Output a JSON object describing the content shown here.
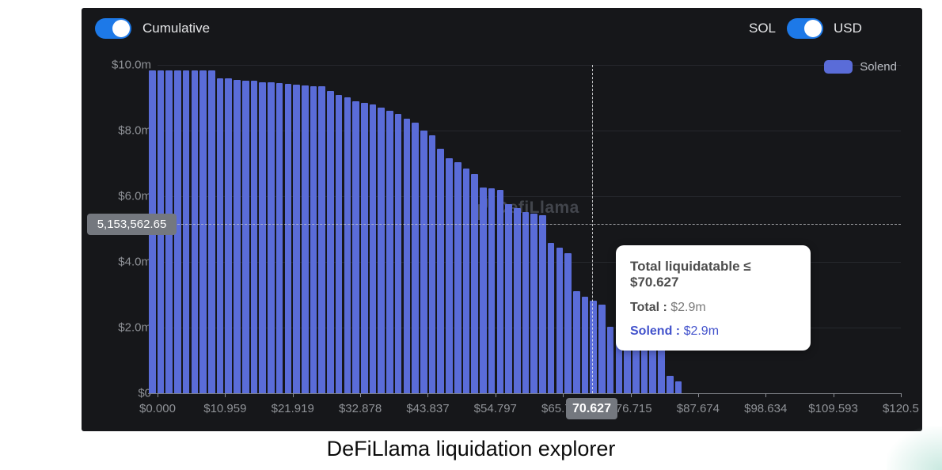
{
  "panel": {
    "cumulative_toggle": {
      "label": "Cumulative",
      "state": "on"
    },
    "currency_toggle": {
      "left_label": "SOL",
      "right_label": "USD",
      "selected": "USD"
    },
    "legend": [
      {
        "label": "Solend",
        "color": "#5a6cd8"
      }
    ],
    "watermark": "DefiLlama"
  },
  "chart_data": {
    "type": "bar",
    "title": "",
    "xlabel": "",
    "ylabel": "",
    "x_tick_labels": [
      "$0.000",
      "$10.959",
      "$21.919",
      "$32.878",
      "$43.837",
      "$54.797",
      "$65.756",
      "$76.715",
      "$87.674",
      "$98.634",
      "$109.593",
      "$120.5"
    ],
    "y_tick_labels": [
      "$10.0m",
      "$8.0m",
      "$6.0m",
      "$4.0m",
      "$2.0m",
      "$0"
    ],
    "ylim_usd_m": [
      0,
      10
    ],
    "x_price_start": 0.0,
    "x_price_step": 1.37,
    "grid": "horizontal",
    "legend_position": "top-right",
    "series": [
      {
        "name": "Solend",
        "color": "#5a6cd8",
        "values_usd_m": [
          9.83,
          9.83,
          9.83,
          9.83,
          9.83,
          9.83,
          9.83,
          9.82,
          9.6,
          9.58,
          9.55,
          9.53,
          9.51,
          9.48,
          9.46,
          9.44,
          9.42,
          9.4,
          9.38,
          9.36,
          9.34,
          9.2,
          9.08,
          9.02,
          8.9,
          8.85,
          8.8,
          8.7,
          8.6,
          8.5,
          8.36,
          8.25,
          8.0,
          7.85,
          7.44,
          7.16,
          7.04,
          6.84,
          6.67,
          6.27,
          6.24,
          6.19,
          5.76,
          5.63,
          5.51,
          5.47,
          5.42,
          4.58,
          4.43,
          4.27,
          3.11,
          2.94,
          2.82,
          2.7,
          2.02,
          1.73,
          1.69,
          1.61,
          1.57,
          1.57,
          1.42,
          0.53,
          0.36
        ]
      }
    ],
    "crosshair": {
      "x_label": "70.627",
      "y_label": "5,153,562.65",
      "x_value": 70.627,
      "y_value": 5153562.65
    },
    "tooltip": {
      "title": "Total liquidatable ≤ $70.627",
      "rows": [
        {
          "label": "Total",
          "value": "$2.9m",
          "color": "#4d4d4d"
        },
        {
          "label": "Solend",
          "value": "$2.9m",
          "color": "#4353cc"
        }
      ]
    }
  },
  "caption": "DeFiLlama liquidation explorer"
}
